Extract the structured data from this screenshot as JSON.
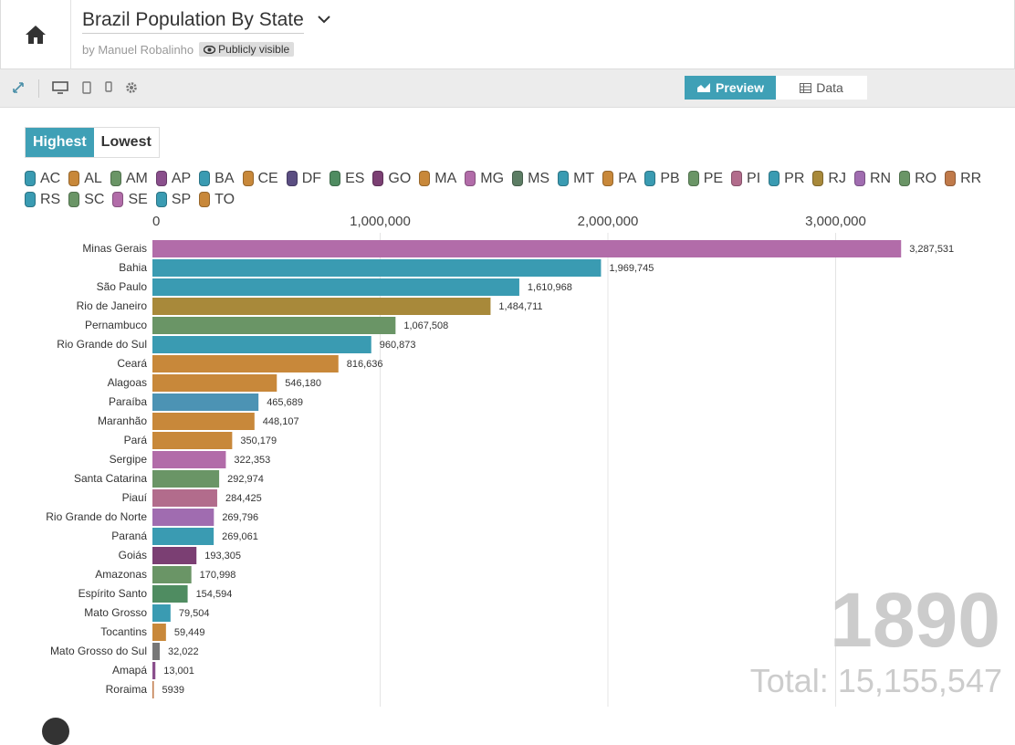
{
  "header": {
    "title": "Brazil Population By State",
    "byline": "by Manuel Robalinho",
    "visibility": "Publicly visible",
    "home_icon": "home-icon",
    "chevron_icon": "chevron-down-icon"
  },
  "toolbar": {
    "icons": [
      "expand-icon",
      "desktop-icon",
      "tablet-icon",
      "phone-icon",
      "gear-icon"
    ],
    "preview_label": "Preview",
    "data_label": "Data"
  },
  "toggle": {
    "highest": "Highest",
    "lowest": "Lowest"
  },
  "legend": [
    {
      "code": "AC",
      "color": "#3a9bb2"
    },
    {
      "code": "AL",
      "color": "#c8883a"
    },
    {
      "code": "AM",
      "color": "#6a9566"
    },
    {
      "code": "AP",
      "color": "#8a4f8c"
    },
    {
      "code": "BA",
      "color": "#3a9bb2"
    },
    {
      "code": "CE",
      "color": "#c8883a"
    },
    {
      "code": "DF",
      "color": "#5b4e82"
    },
    {
      "code": "ES",
      "color": "#4f8c61"
    },
    {
      "code": "GO",
      "color": "#7b3f73"
    },
    {
      "code": "MA",
      "color": "#c8883a"
    },
    {
      "code": "MG",
      "color": "#b26ca9"
    },
    {
      "code": "MS",
      "color": "#5c7d64"
    },
    {
      "code": "MT",
      "color": "#3a9bb2"
    },
    {
      "code": "PA",
      "color": "#c8883a"
    },
    {
      "code": "PB",
      "color": "#3a9bb2"
    },
    {
      "code": "PE",
      "color": "#6a9566"
    },
    {
      "code": "PI",
      "color": "#b26c8c"
    },
    {
      "code": "PR",
      "color": "#3a9bb2"
    },
    {
      "code": "RJ",
      "color": "#a8893a"
    },
    {
      "code": "RN",
      "color": "#a06cb0"
    },
    {
      "code": "RO",
      "color": "#6a9566"
    },
    {
      "code": "RR",
      "color": "#c07a4a"
    },
    {
      "code": "RS",
      "color": "#3a9bb2"
    },
    {
      "code": "SC",
      "color": "#6a9566"
    },
    {
      "code": "SE",
      "color": "#b26ca9"
    },
    {
      "code": "SP",
      "color": "#3a9bb2"
    },
    {
      "code": "TO",
      "color": "#c8883a"
    }
  ],
  "chart_data": {
    "type": "bar",
    "orientation": "horizontal",
    "year": "1890",
    "total_label": "Total: 15,155,547",
    "xlim": [
      0,
      3300000
    ],
    "xticks": [
      0,
      1000000,
      2000000,
      3000000
    ],
    "xtick_labels": [
      "0",
      "1,000,000",
      "2,000,000",
      "3,000,000"
    ],
    "grid": true,
    "categories": [
      "Minas Gerais",
      "Bahia",
      "São Paulo",
      "Rio de Janeiro",
      "Pernambuco",
      "Rio Grande do Sul",
      "Ceará",
      "Alagoas",
      "Paraíba",
      "Maranhão",
      "Pará",
      "Sergipe",
      "Santa Catarina",
      "Piauí",
      "Rio Grande do Norte",
      "Paraná",
      "Goiás",
      "Amazonas",
      "Espírito Santo",
      "Mato Grosso",
      "Tocantins",
      "Mato Grosso do Sul",
      "Amapá",
      "Roraima"
    ],
    "values": [
      3287531,
      1969745,
      1610968,
      1484711,
      1067508,
      960873,
      816636,
      546180,
      465689,
      448107,
      350179,
      322353,
      292974,
      284425,
      269796,
      269061,
      193305,
      170998,
      154594,
      79504,
      59449,
      32022,
      13001,
      5939
    ],
    "value_labels": [
      "3,287,531",
      "1,969,745",
      "1,610,968",
      "1,484,711",
      "1,067,508",
      "960,873",
      "816,636",
      "546,180",
      "465,689",
      "448,107",
      "350,179",
      "322,353",
      "292,974",
      "284,425",
      "269,796",
      "269,061",
      "193,305",
      "170,998",
      "154,594",
      "79,504",
      "59,449",
      "32,022",
      "13,001",
      "5939"
    ],
    "colors": [
      "#b26ca9",
      "#3a9bb2",
      "#3a9bb2",
      "#a8893a",
      "#6a9566",
      "#3a9bb2",
      "#c8883a",
      "#c8883a",
      "#4c93b4",
      "#c8883a",
      "#c8883a",
      "#b26ca9",
      "#6a9566",
      "#b26c8c",
      "#a06cb0",
      "#3a9bb2",
      "#7b3f73",
      "#6a9566",
      "#4f8c61",
      "#3a9bb2",
      "#c8883a",
      "#777777",
      "#8a4f8c",
      "#c07a4a"
    ]
  }
}
